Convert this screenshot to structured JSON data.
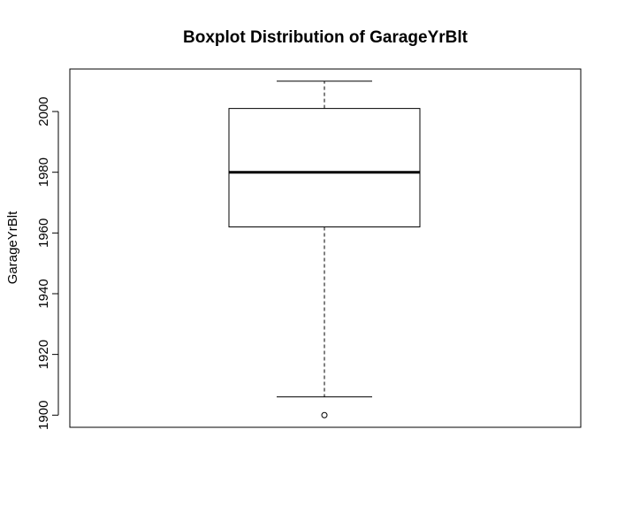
{
  "chart_data": {
    "type": "boxplot",
    "title": "Boxplot Distribution of GarageYrBlt",
    "xlabel": "",
    "ylabel": "GarageYrBlt",
    "ylim": [
      1896,
      2014
    ],
    "yticks": [
      1900,
      1920,
      1940,
      1960,
      1980,
      2000
    ],
    "grid": false,
    "boxes": [
      {
        "whisker_low": 1906,
        "q1": 1962,
        "median": 1980,
        "q3": 2001,
        "whisker_high": 2010,
        "outliers": [
          1900
        ]
      }
    ],
    "colors": {
      "line": "#000000",
      "box_fill": "#ffffff"
    }
  }
}
